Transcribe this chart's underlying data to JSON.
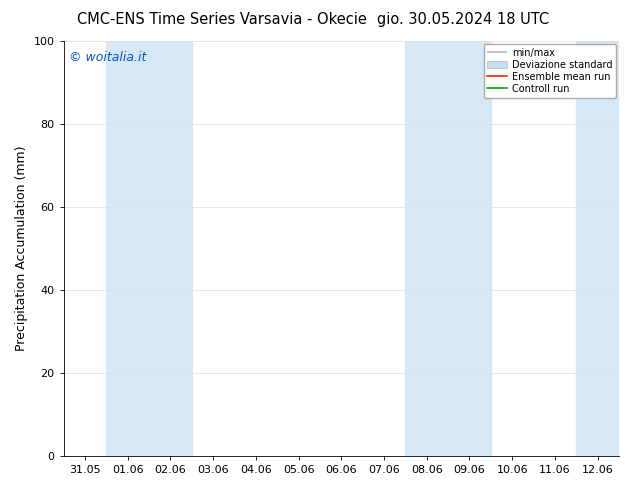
{
  "title": "CMC-ENS Time Series Varsavia - Okecie",
  "title2": "gio. 30.05.2024 18 UTC",
  "ylabel": "Precipitation Accumulation (mm)",
  "ylim": [
    0,
    100
  ],
  "yticks": [
    0,
    20,
    40,
    60,
    80,
    100
  ],
  "x_labels": [
    "31.05",
    "01.06",
    "02.06",
    "03.06",
    "04.06",
    "05.06",
    "06.06",
    "07.06",
    "08.06",
    "09.06",
    "10.06",
    "11.06",
    "12.06"
  ],
  "background_color": "#ffffff",
  "plot_bg_color": "#ffffff",
  "shaded_bands": [
    {
      "xstart": 1,
      "xend": 3
    },
    {
      "xstart": 8,
      "xend": 10
    },
    {
      "xstart": 12,
      "xend": 13
    }
  ],
  "shade_color": "#d6e8f5",
  "watermark": "© woitalia.it",
  "watermark_color": "#0055cc",
  "legend_labels": [
    "min/max",
    "Deviazione standard",
    "Ensemble mean run",
    "Controll run"
  ],
  "minmax_color": "#aabbcc",
  "dev_std_color": "#c5dcee",
  "ens_color": "#ff2200",
  "ctrl_color": "#00aa00",
  "title_fontsize": 10.5,
  "tick_fontsize": 8,
  "ylabel_fontsize": 9,
  "watermark_fontsize": 9
}
